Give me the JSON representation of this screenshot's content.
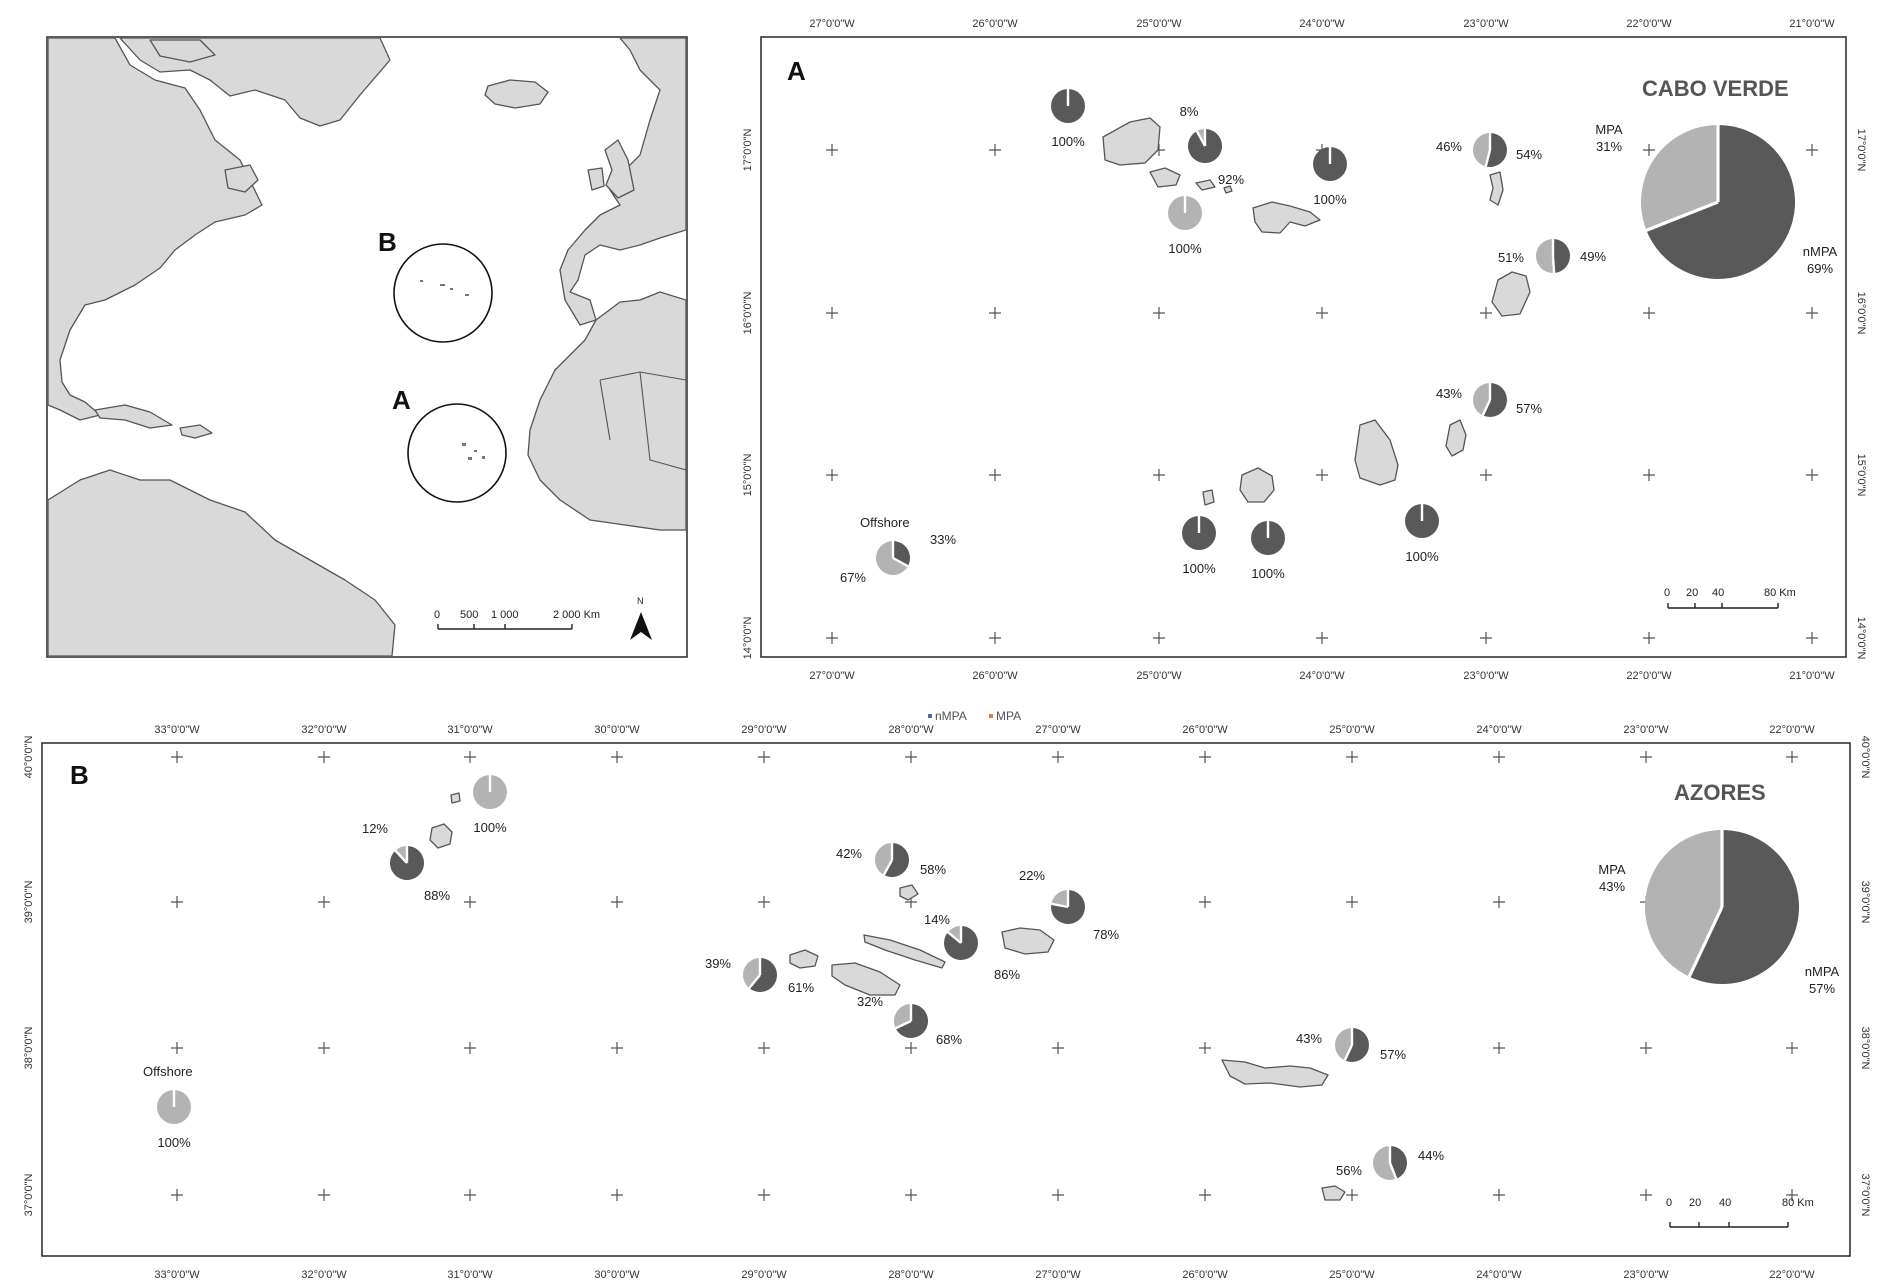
{
  "colors": {
    "mpa": "#b3b3b3",
    "nmpa": "#595959",
    "land": "#d9d9d9"
  },
  "inset": {
    "labels": {
      "A": "A",
      "B": "B"
    },
    "scale": {
      "ticks": [
        "0",
        "500",
        "1 000",
        "2 000 Km"
      ]
    },
    "north": "N"
  },
  "panel_a": {
    "letter": "A",
    "title": "CABO VERDE",
    "x_ticks": [
      "27°0'0\"W",
      "26°0'0\"W",
      "25°0'0\"W",
      "24°0'0\"W",
      "23°0'0\"W",
      "22°0'0\"W",
      "21°0'0\"W"
    ],
    "y_ticks": [
      "17°0'0\"N",
      "16°0'0\"N",
      "15°0'0\"N",
      "14°0'0\"N"
    ],
    "summary": {
      "mpa_label": "MPA",
      "mpa_pct": "31%",
      "nmpa_label": "nMPA",
      "nmpa_pct": "69%",
      "mpa_fraction": 0.31
    },
    "offshore_label": "Offshore",
    "scale": [
      "0",
      "20",
      "40",
      "80 Km"
    ],
    "pies": [
      {
        "mpa": 0,
        "labels": [
          "100%"
        ]
      },
      {
        "mpa": 0.08,
        "labels": [
          "8%",
          "92%"
        ]
      },
      {
        "mpa": 1,
        "labels": [
          "100%"
        ]
      },
      {
        "mpa": 0,
        "labels": [
          "100%"
        ]
      },
      {
        "mpa": 0.46,
        "labels": [
          "46%",
          "54%"
        ]
      },
      {
        "mpa": 0.51,
        "labels": [
          "51%",
          "49%"
        ]
      },
      {
        "mpa": 0.43,
        "labels": [
          "43%",
          "57%"
        ]
      },
      {
        "mpa": 0.67,
        "labels": [
          "33%",
          "67%"
        ]
      },
      {
        "mpa": 0,
        "labels": [
          "100%"
        ]
      },
      {
        "mpa": 0,
        "labels": [
          "100%"
        ]
      },
      {
        "mpa": 0,
        "labels": [
          "100%"
        ]
      }
    ]
  },
  "panel_b": {
    "letter": "B",
    "title": "AZORES",
    "x_ticks": [
      "33°0'0\"W",
      "32°0'0\"W",
      "31°0'0\"W",
      "30°0'0\"W",
      "29°0'0\"W",
      "28°0'0\"W",
      "27°0'0\"W",
      "26°0'0\"W",
      "25°0'0\"W",
      "24°0'0\"W",
      "23°0'0\"W",
      "22°0'0\"W"
    ],
    "y_ticks": [
      "40°0'0\"N",
      "39°0'0\"N",
      "38°0'0\"N",
      "37°0'0\"N"
    ],
    "legend": {
      "nmpa": "nMPA",
      "mpa": "MPA"
    },
    "summary": {
      "mpa_label": "MPA",
      "mpa_pct": "43%",
      "nmpa_label": "nMPA",
      "nmpa_pct": "57%",
      "mpa_fraction": 0.43
    },
    "offshore_label": "Offshore",
    "scale": [
      "0",
      "20",
      "40",
      "80 Km"
    ],
    "pies": [
      {
        "mpa": 1,
        "labels": [
          "100%"
        ]
      },
      {
        "mpa": 0.12,
        "labels": [
          "12%",
          "88%"
        ]
      },
      {
        "mpa": 0.42,
        "labels": [
          "42%",
          "58%"
        ]
      },
      {
        "mpa": 0.22,
        "labels": [
          "22%",
          "78%"
        ]
      },
      {
        "mpa": 0.14,
        "labels": [
          "14%",
          "86%"
        ]
      },
      {
        "mpa": 0.39,
        "labels": [
          "39%",
          "61%"
        ]
      },
      {
        "mpa": 0.32,
        "labels": [
          "32%",
          "68%"
        ]
      },
      {
        "mpa": 0.43,
        "labels": [
          "43%",
          "57%"
        ]
      },
      {
        "mpa": 0.56,
        "labels": [
          "56%",
          "44%"
        ]
      },
      {
        "mpa": 1,
        "labels": [
          "100%"
        ]
      }
    ]
  }
}
